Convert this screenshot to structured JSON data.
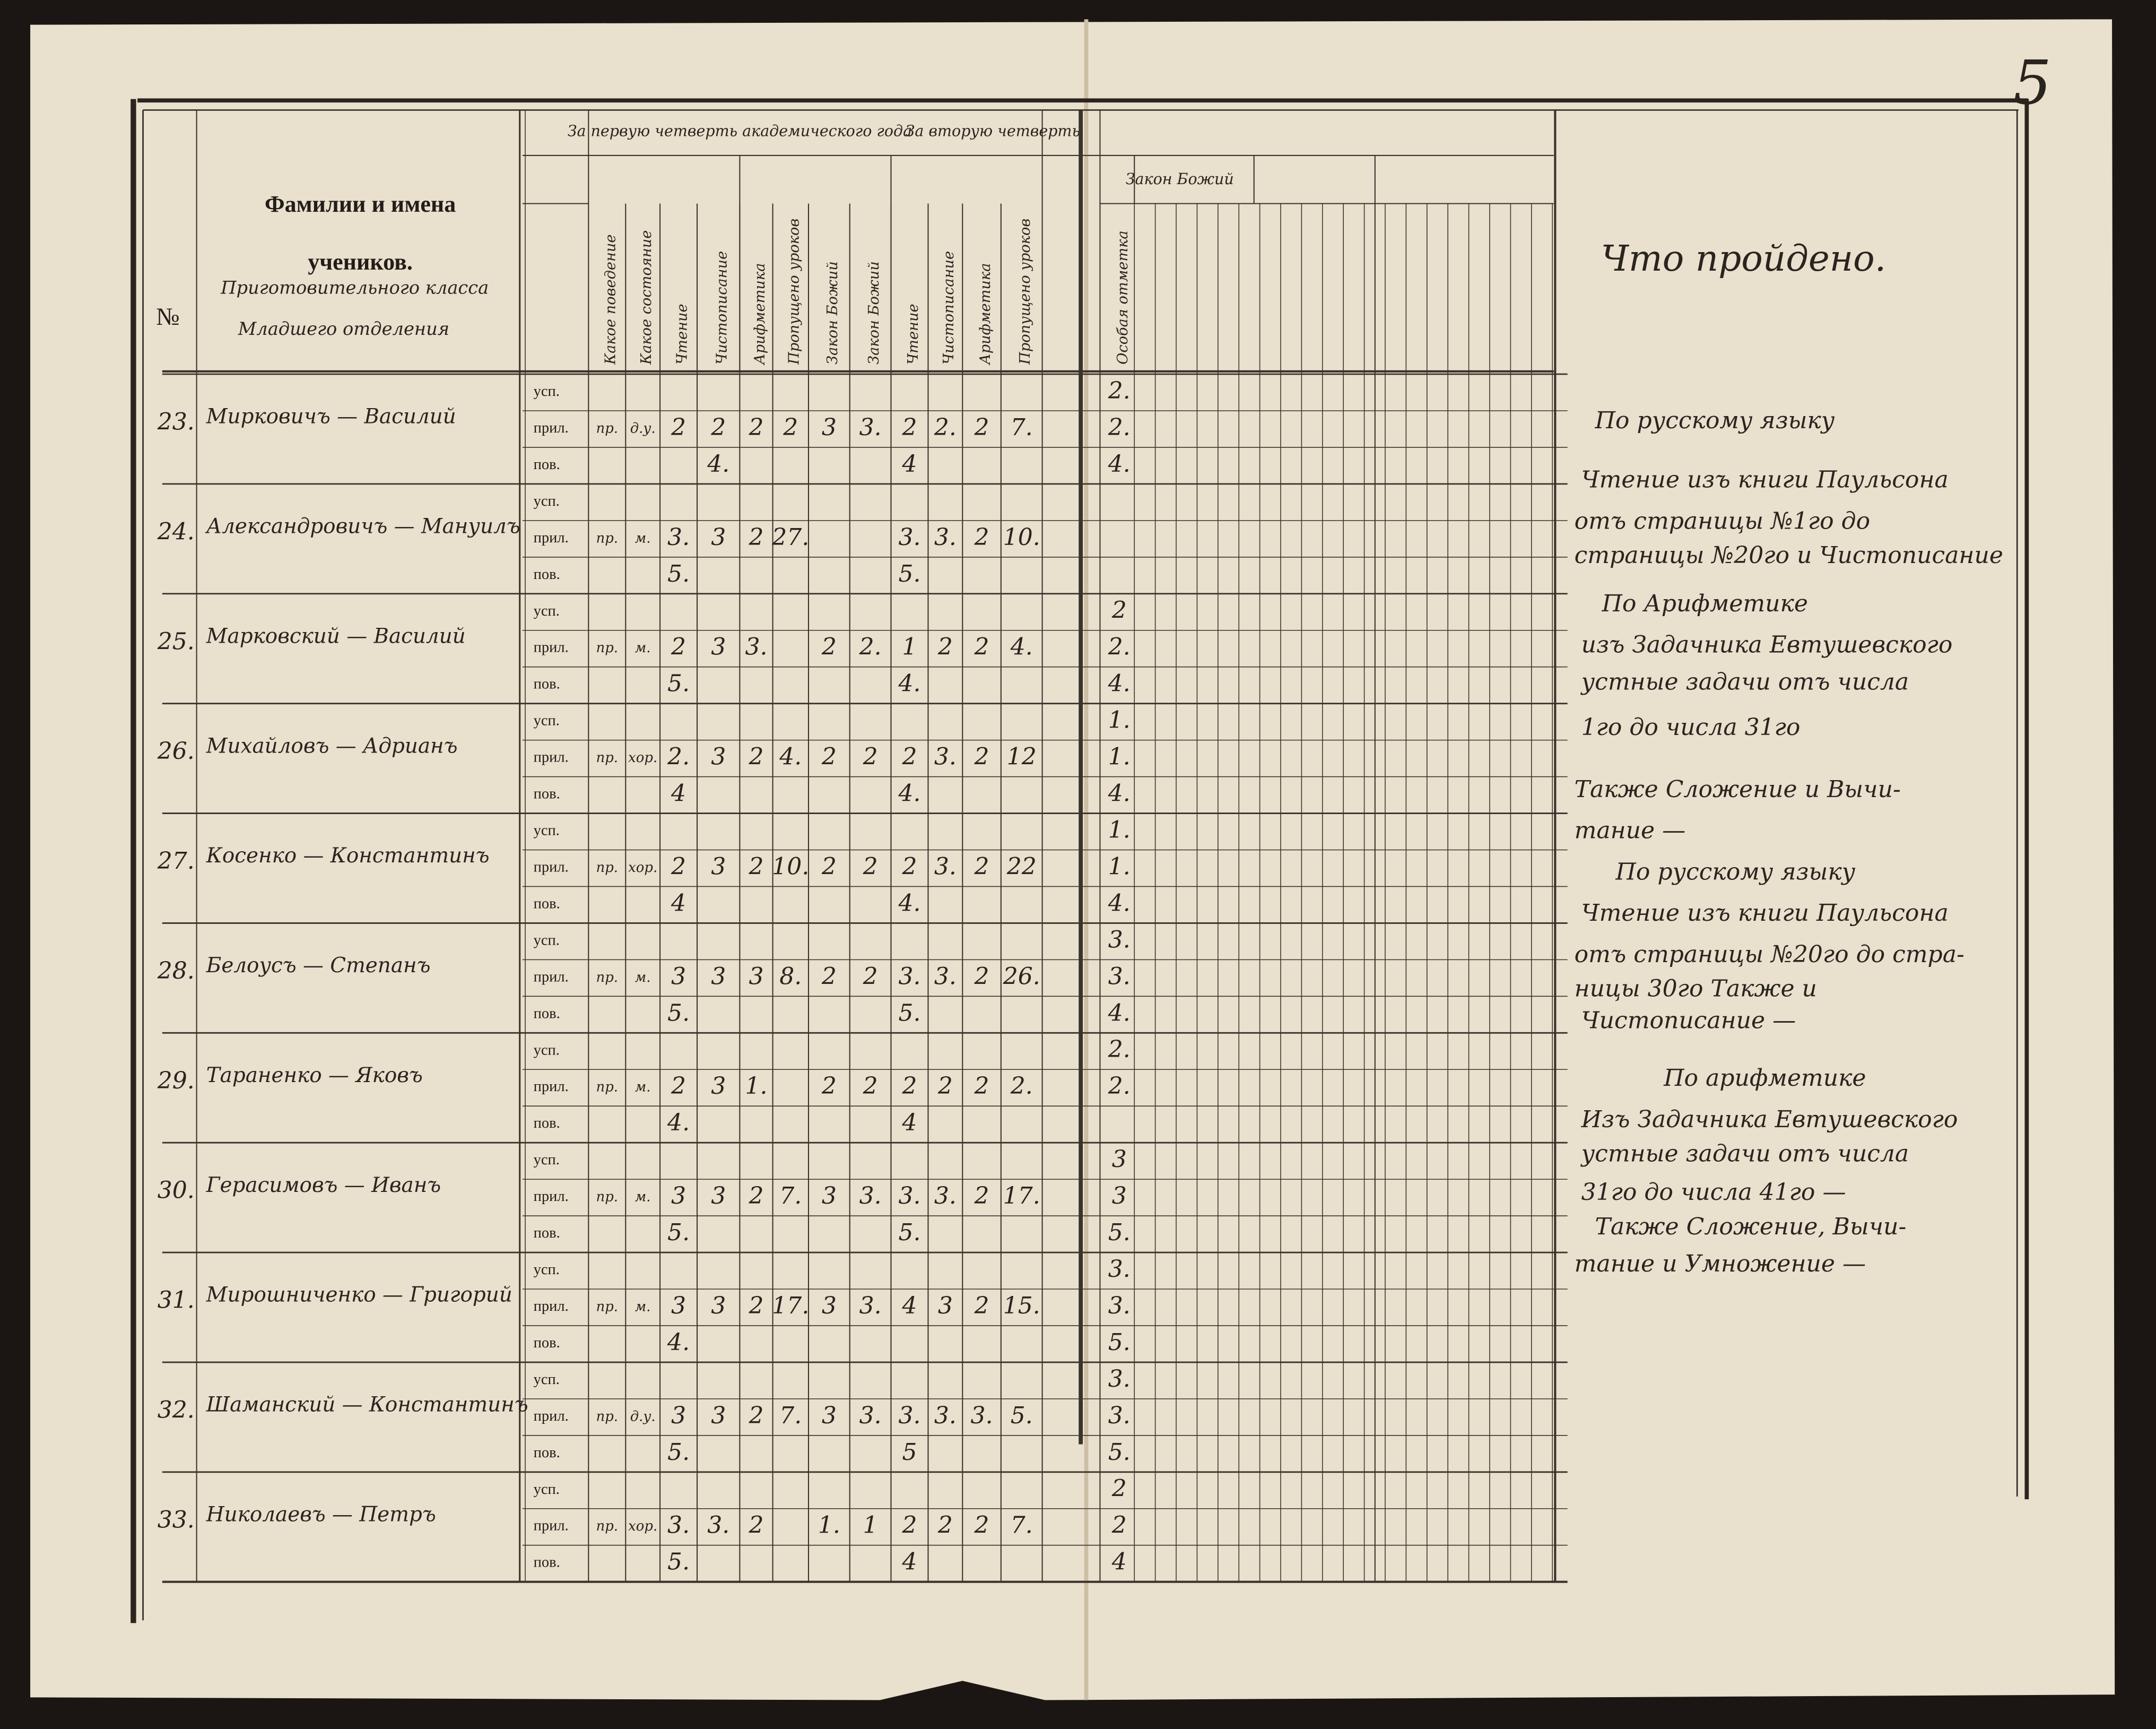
{
  "page_number": "5",
  "header": {
    "number_sign": "№",
    "title_line1": "Фамилии и имена",
    "title_line2": "учеников.",
    "subtitle": [
      "Приготовительного класса",
      "Младшего отделения"
    ]
  },
  "column_groups": [
    "За первую четверть академического года",
    "За вторую четверть"
  ],
  "right_group": "Закон Божий",
  "columns": [
    "Какое поведение",
    "Какое состояние",
    "Чтение",
    "Чистописание",
    "Арифметика",
    "Пропущено уроков",
    "Закон Божий",
    "Закон Божий",
    "Чтение",
    "Чистописание",
    "Арифметика",
    "Пропущено уроков",
    "Особая отметка"
  ],
  "row_labels": [
    "усп.",
    "прил.",
    "пов."
  ],
  "done_title": "Что пройдено.",
  "students": [
    {
      "number": "23.",
      "name": "Мирковичъ — Василий",
      "marks": [
        [
          null,
          null,
          null,
          null,
          null,
          null,
          null,
          null,
          null,
          null,
          null,
          null,
          "2."
        ],
        [
          "пр.",
          "д.у.",
          "2",
          "2",
          "2",
          "2",
          "3",
          "3.",
          "2",
          "2.",
          "2",
          "7.",
          "2."
        ],
        [
          null,
          null,
          null,
          "4.",
          null,
          null,
          null,
          null,
          "4",
          null,
          null,
          null,
          "4."
        ]
      ]
    },
    {
      "number": "24.",
      "name": "Александровичъ — Мануилъ",
      "marks": [
        [
          null,
          null,
          null,
          null,
          null,
          null,
          null,
          null,
          null,
          null,
          null,
          null,
          null
        ],
        [
          "пр.",
          "м.",
          "3.",
          "3",
          "2",
          "27.",
          null,
          null,
          "3.",
          "3.",
          "2",
          "10.",
          null
        ],
        [
          null,
          null,
          "5.",
          null,
          null,
          null,
          null,
          null,
          "5.",
          null,
          null,
          null,
          null
        ]
      ]
    },
    {
      "number": "25.",
      "name": "Марковский — Василий",
      "marks": [
        [
          null,
          null,
          null,
          null,
          null,
          null,
          null,
          null,
          null,
          null,
          null,
          null,
          "2"
        ],
        [
          "пр.",
          "м.",
          "2",
          "3",
          "3.",
          null,
          "2",
          "2.",
          "1",
          "2",
          "2",
          "4.",
          "2."
        ],
        [
          null,
          null,
          "5.",
          null,
          null,
          null,
          null,
          null,
          "4.",
          null,
          null,
          null,
          "4."
        ]
      ]
    },
    {
      "number": "26.",
      "name": "Михайловъ — Адрианъ",
      "marks": [
        [
          null,
          null,
          null,
          null,
          null,
          null,
          null,
          null,
          null,
          null,
          null,
          null,
          "1."
        ],
        [
          "пр.",
          "хор.",
          "2.",
          "3",
          "2",
          "4.",
          "2",
          "2",
          "2",
          "3.",
          "2",
          "12",
          "1."
        ],
        [
          null,
          null,
          "4",
          null,
          null,
          null,
          null,
          null,
          "4.",
          null,
          null,
          null,
          "4."
        ]
      ]
    },
    {
      "number": "27.",
      "name": "Косенко — Константинъ",
      "marks": [
        [
          null,
          null,
          null,
          null,
          null,
          null,
          null,
          null,
          null,
          null,
          null,
          null,
          "1."
        ],
        [
          "пр.",
          "хор.",
          "2",
          "3",
          "2",
          "10.",
          "2",
          "2",
          "2",
          "3.",
          "2",
          "22",
          "1."
        ],
        [
          null,
          null,
          "4",
          null,
          null,
          null,
          null,
          null,
          "4.",
          null,
          null,
          null,
          "4."
        ]
      ]
    },
    {
      "number": "28.",
      "name": "Белоусъ — Степанъ",
      "marks": [
        [
          null,
          null,
          null,
          null,
          null,
          null,
          null,
          null,
          null,
          null,
          null,
          null,
          "3."
        ],
        [
          "пр.",
          "м.",
          "3",
          "3",
          "3",
          "8.",
          "2",
          "2",
          "3.",
          "3.",
          "2",
          "26.",
          "3."
        ],
        [
          null,
          null,
          "5.",
          null,
          null,
          null,
          null,
          null,
          "5.",
          null,
          null,
          null,
          "4."
        ]
      ]
    },
    {
      "number": "29.",
      "name": "Тараненко — Яковъ",
      "marks": [
        [
          null,
          null,
          null,
          null,
          null,
          null,
          null,
          null,
          null,
          null,
          null,
          null,
          "2."
        ],
        [
          "пр.",
          "м.",
          "2",
          "3",
          "1.",
          null,
          "2",
          "2",
          "2",
          "2",
          "2",
          "2.",
          "2."
        ],
        [
          null,
          null,
          "4.",
          null,
          null,
          null,
          null,
          null,
          "4",
          null,
          null,
          null,
          null
        ]
      ]
    },
    {
      "number": "30.",
      "name": "Герасимовъ — Иванъ",
      "marks": [
        [
          null,
          null,
          null,
          null,
          null,
          null,
          null,
          null,
          null,
          null,
          null,
          null,
          "3"
        ],
        [
          "пр.",
          "м.",
          "3",
          "3",
          "2",
          "7.",
          "3",
          "3.",
          "3.",
          "3.",
          "2",
          "17.",
          "3"
        ],
        [
          null,
          null,
          "5.",
          null,
          null,
          null,
          null,
          null,
          "5.",
          null,
          null,
          null,
          "5."
        ]
      ]
    },
    {
      "number": "31.",
      "name": "Мирошниченко — Григорий",
      "marks": [
        [
          null,
          null,
          null,
          null,
          null,
          null,
          null,
          null,
          null,
          null,
          null,
          null,
          "3."
        ],
        [
          "пр.",
          "м.",
          "3",
          "3",
          "2",
          "17.",
          "3",
          "3.",
          "4",
          "3",
          "2",
          "15.",
          "3."
        ],
        [
          null,
          null,
          "4.",
          null,
          null,
          null,
          null,
          null,
          null,
          null,
          null,
          null,
          "5."
        ]
      ]
    },
    {
      "number": "32.",
      "name": "Шаманский — Константинъ",
      "marks": [
        [
          null,
          null,
          null,
          null,
          null,
          null,
          null,
          null,
          null,
          null,
          null,
          null,
          "3."
        ],
        [
          "пр.",
          "д.у.",
          "3",
          "3",
          "2",
          "7.",
          "3",
          "3.",
          "3.",
          "3.",
          "3.",
          "5.",
          "3."
        ],
        [
          null,
          null,
          "5.",
          null,
          null,
          null,
          null,
          null,
          "5",
          null,
          null,
          null,
          "5."
        ]
      ]
    },
    {
      "number": "33.",
      "name": "Николаевъ — Петръ",
      "marks": [
        [
          null,
          null,
          null,
          null,
          null,
          null,
          null,
          null,
          null,
          null,
          null,
          null,
          "2"
        ],
        [
          "пр.",
          "хор.",
          "3.",
          "3.",
          "2",
          null,
          "1.",
          "1",
          "2",
          "2",
          "2",
          "7.",
          "2"
        ],
        [
          null,
          null,
          "5.",
          null,
          null,
          null,
          null,
          null,
          "4",
          null,
          null,
          null,
          "4"
        ]
      ]
    }
  ],
  "done_text": [
    "По русскому языку",
    "Чтение изъ книги Паульсона",
    "отъ страницы №1го до",
    "страницы №20го и Чистописание",
    "По Арифметике",
    "изъ Задачника Евтушевского",
    "устные задачи отъ числа",
    "1го до числа 31го",
    "Также Сложение и Вычи-",
    "тание —",
    "По русскому языку",
    "Чтение изъ книги Паульсона",
    "отъ страницы №20го до стра-",
    "ницы 30го Также и",
    "Чистописание —",
    "По арифметике",
    "Изъ Задачника Евтушевского",
    "устные задачи отъ числа",
    "31го до числа 41го —",
    "Также Сложение, Вычи-",
    "тание и Умножение —"
  ]
}
